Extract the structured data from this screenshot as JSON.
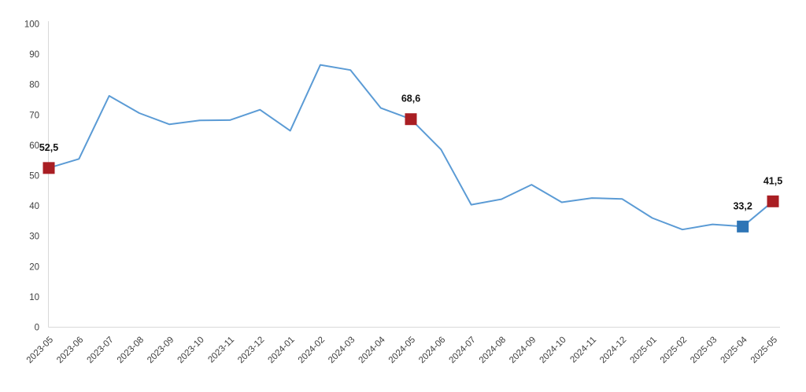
{
  "chart_data": {
    "type": "line",
    "title": "",
    "xlabel": "",
    "ylabel": "",
    "categories": [
      "2023-05",
      "2023-06",
      "2023-07",
      "2023-08",
      "2023-09",
      "2023-10",
      "2023-11",
      "2023-12",
      "2024-01",
      "2024-02",
      "2024-03",
      "2024-04",
      "2024-05",
      "2024-06",
      "2024-07",
      "2024-08",
      "2024-09",
      "2024-10",
      "2024-11",
      "2024-12",
      "2025-01",
      "2025-02",
      "2025-03",
      "2025-04",
      "2025-05"
    ],
    "values": [
      52.5,
      55.5,
      76.3,
      70.6,
      66.9,
      68.2,
      68.3,
      71.7,
      64.8,
      86.5,
      84.8,
      72.3,
      68.6,
      58.6,
      40.4,
      42.2,
      47.0,
      41.2,
      42.6,
      42.3,
      36.0,
      32.2,
      33.9,
      33.2,
      41.5
    ],
    "ylim": [
      0,
      100
    ],
    "y_ticks": [
      0,
      10,
      20,
      30,
      40,
      50,
      60,
      70,
      80,
      90,
      100
    ],
    "grid": false,
    "legend_position": "none",
    "line_color": "#5b9bd5",
    "axis_color": "#d9d9d9",
    "tick_label_color": "#404040",
    "data_label_color": "#111111",
    "highlighted_points": [
      {
        "category": "2023-05",
        "index": 0,
        "value": 52.5,
        "label": "52,5",
        "marker": "square",
        "marker_color": "#a91e23"
      },
      {
        "category": "2024-05",
        "index": 12,
        "value": 68.6,
        "label": "68,6",
        "marker": "square",
        "marker_color": "#a91e23"
      },
      {
        "category": "2025-04",
        "index": 23,
        "value": 33.2,
        "label": "33,2",
        "marker": "square",
        "marker_color": "#2e75b6"
      },
      {
        "category": "2025-05",
        "index": 24,
        "value": 41.5,
        "label": "41,5",
        "marker": "square",
        "marker_color": "#a91e23"
      }
    ]
  }
}
